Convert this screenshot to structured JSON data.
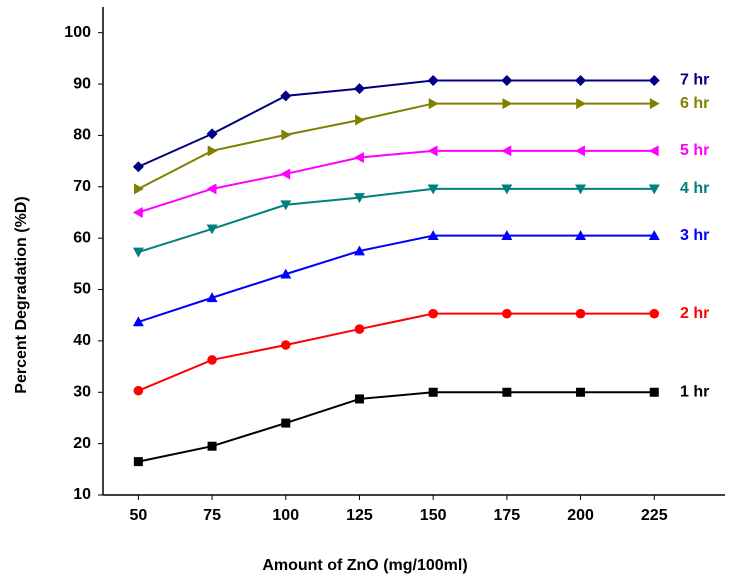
{
  "chart_data": {
    "type": "line",
    "x_label": "Amount of ZnO (mg/100ml)",
    "y_label": "Percent Degradation (%D)",
    "x": [
      50,
      75,
      100,
      125,
      150,
      175,
      200,
      225
    ],
    "xlim": [
      38,
      249
    ],
    "xticks": [
      50,
      75,
      100,
      125,
      150,
      175,
      200,
      225
    ],
    "ylim": [
      10,
      105
    ],
    "yticks": [
      10,
      20,
      30,
      40,
      50,
      60,
      70,
      80,
      90,
      100
    ],
    "series": [
      {
        "name": "1 hr",
        "color": "#000000",
        "marker": "square",
        "values": [
          16.5,
          19.5,
          24,
          28.7,
          30,
          30,
          30,
          30
        ]
      },
      {
        "name": "2 hr",
        "color": "#ff0000",
        "marker": "circle",
        "values": [
          30.3,
          36.3,
          39.2,
          42.3,
          45.3,
          45.3,
          45.3,
          45.3
        ]
      },
      {
        "name": "3 hr",
        "color": "#0000ff",
        "marker": "triangle-up",
        "values": [
          43.7,
          48.4,
          53,
          57.5,
          60.5,
          60.5,
          60.5,
          60.5
        ]
      },
      {
        "name": "4 hr",
        "color": "#008080",
        "marker": "triangle-down",
        "values": [
          57.3,
          61.8,
          66.5,
          67.9,
          69.6,
          69.6,
          69.6,
          69.6
        ]
      },
      {
        "name": "5 hr",
        "color": "#ff00ff",
        "marker": "triangle-left",
        "values": [
          65,
          69.6,
          72.5,
          75.7,
          77,
          77,
          77,
          77
        ]
      },
      {
        "name": "6 hr",
        "color": "#808000",
        "marker": "triangle-right",
        "values": [
          69.6,
          77,
          80.1,
          83,
          86.2,
          86.2,
          86.2,
          86.2
        ]
      },
      {
        "name": "7 hr",
        "color": "#000080",
        "marker": "diamond",
        "values": [
          73.9,
          80.3,
          87.7,
          89.1,
          90.7,
          90.7,
          90.7,
          90.7
        ]
      }
    ]
  }
}
